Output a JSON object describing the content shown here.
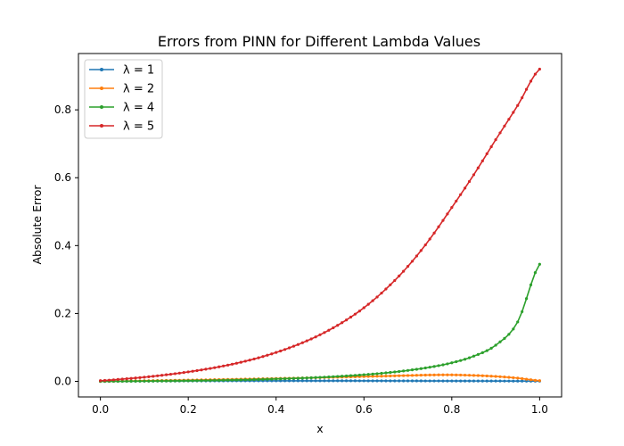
{
  "chart_data": {
    "type": "line",
    "title": "Errors from PINN for Different Lambda Values",
    "xlabel": "x",
    "ylabel": "Absolute Error",
    "xlim": [
      -0.05,
      1.05
    ],
    "ylim": [
      -0.046,
      0.966
    ],
    "x_ticks": [
      0.0,
      0.2,
      0.4,
      0.6,
      0.8,
      1.0
    ],
    "x_tick_labels": [
      "0.0",
      "0.2",
      "0.4",
      "0.6",
      "0.8",
      "1.0"
    ],
    "y_ticks": [
      0.0,
      0.2,
      0.4,
      0.6,
      0.8
    ],
    "y_tick_labels": [
      "0.0",
      "0.2",
      "0.4",
      "0.6",
      "0.8"
    ],
    "grid": false,
    "legend_position": "top-left",
    "marker": "dot",
    "x": [
      0.0,
      0.05,
      0.1,
      0.15,
      0.2,
      0.25,
      0.3,
      0.35,
      0.4,
      0.45,
      0.5,
      0.55,
      0.6,
      0.65,
      0.7,
      0.75,
      0.8,
      0.85,
      0.9,
      0.95,
      1.0
    ],
    "series": [
      {
        "name": "λ = 1",
        "color": "#1f77b4",
        "values": [
          0.0,
          0.0004,
          0.0007,
          0.001,
          0.0012,
          0.0014,
          0.0015,
          0.0016,
          0.0016,
          0.0016,
          0.0016,
          0.0016,
          0.0015,
          0.0014,
          0.0013,
          0.0012,
          0.0011,
          0.001,
          0.0009,
          0.0008,
          0.0006
        ]
      },
      {
        "name": "λ = 2",
        "color": "#ff7f0e",
        "values": [
          0.0,
          0.0008,
          0.0017,
          0.0026,
          0.0036,
          0.0047,
          0.0058,
          0.007,
          0.0083,
          0.0096,
          0.011,
          0.0125,
          0.014,
          0.0156,
          0.0172,
          0.0187,
          0.019,
          0.0175,
          0.0145,
          0.0095,
          0.002
        ]
      },
      {
        "name": "λ = 4",
        "color": "#2ca02c",
        "values": [
          0.0,
          0.0002,
          0.0006,
          0.0011,
          0.0018,
          0.0027,
          0.0038,
          0.0052,
          0.0069,
          0.009,
          0.0117,
          0.0151,
          0.0194,
          0.0249,
          0.0321,
          0.0416,
          0.0545,
          0.0742,
          0.1065,
          0.175,
          0.345
        ]
      },
      {
        "name": "λ = 5",
        "color": "#d62728",
        "values": [
          0.002,
          0.0066,
          0.0122,
          0.0193,
          0.0278,
          0.038,
          0.0505,
          0.0659,
          0.085,
          0.1085,
          0.1372,
          0.1728,
          0.2168,
          0.272,
          0.3387,
          0.4192,
          0.5122,
          0.6087,
          0.712,
          0.813,
          0.92
        ]
      }
    ]
  }
}
